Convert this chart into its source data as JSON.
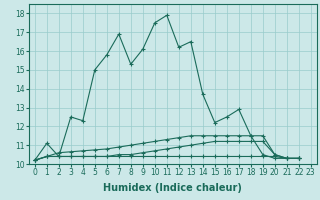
{
  "xlabel": "Humidex (Indice chaleur)",
  "ylabel": "",
  "background_color": "#cce8e8",
  "grid_color": "#99cccc",
  "line_color": "#1a6b5a",
  "xlim": [
    -0.5,
    23.5
  ],
  "ylim": [
    10,
    18.5
  ],
  "yticks": [
    10,
    11,
    12,
    13,
    14,
    15,
    16,
    17,
    18
  ],
  "xticks": [
    0,
    1,
    2,
    3,
    4,
    5,
    6,
    7,
    8,
    9,
    10,
    11,
    12,
    13,
    14,
    15,
    16,
    17,
    18,
    19,
    20,
    21,
    22,
    23
  ],
  "series": [
    [
      10.2,
      11.1,
      10.4,
      12.5,
      12.3,
      15.0,
      15.8,
      16.9,
      15.3,
      16.1,
      17.5,
      17.9,
      16.2,
      16.5,
      13.7,
      12.2,
      12.5,
      12.9,
      11.5,
      10.5,
      10.3,
      10.3,
      10.3
    ],
    [
      10.2,
      10.4,
      10.6,
      10.65,
      10.7,
      10.75,
      10.8,
      10.9,
      11.0,
      11.1,
      11.2,
      11.3,
      11.4,
      11.5,
      11.5,
      11.5,
      11.5,
      11.5,
      11.5,
      11.5,
      10.5,
      10.3,
      10.3
    ],
    [
      10.2,
      10.4,
      10.4,
      10.4,
      10.4,
      10.4,
      10.4,
      10.4,
      10.4,
      10.4,
      10.4,
      10.4,
      10.4,
      10.4,
      10.4,
      10.4,
      10.4,
      10.4,
      10.4,
      10.4,
      10.4,
      10.3,
      10.3
    ],
    [
      10.2,
      10.4,
      10.4,
      10.4,
      10.4,
      10.4,
      10.4,
      10.5,
      10.5,
      10.6,
      10.7,
      10.8,
      10.9,
      11.0,
      11.1,
      11.2,
      11.2,
      11.2,
      11.2,
      11.2,
      10.5,
      10.3,
      10.3
    ]
  ],
  "tick_fontsize": 5.5,
  "axis_label_fontsize": 7
}
